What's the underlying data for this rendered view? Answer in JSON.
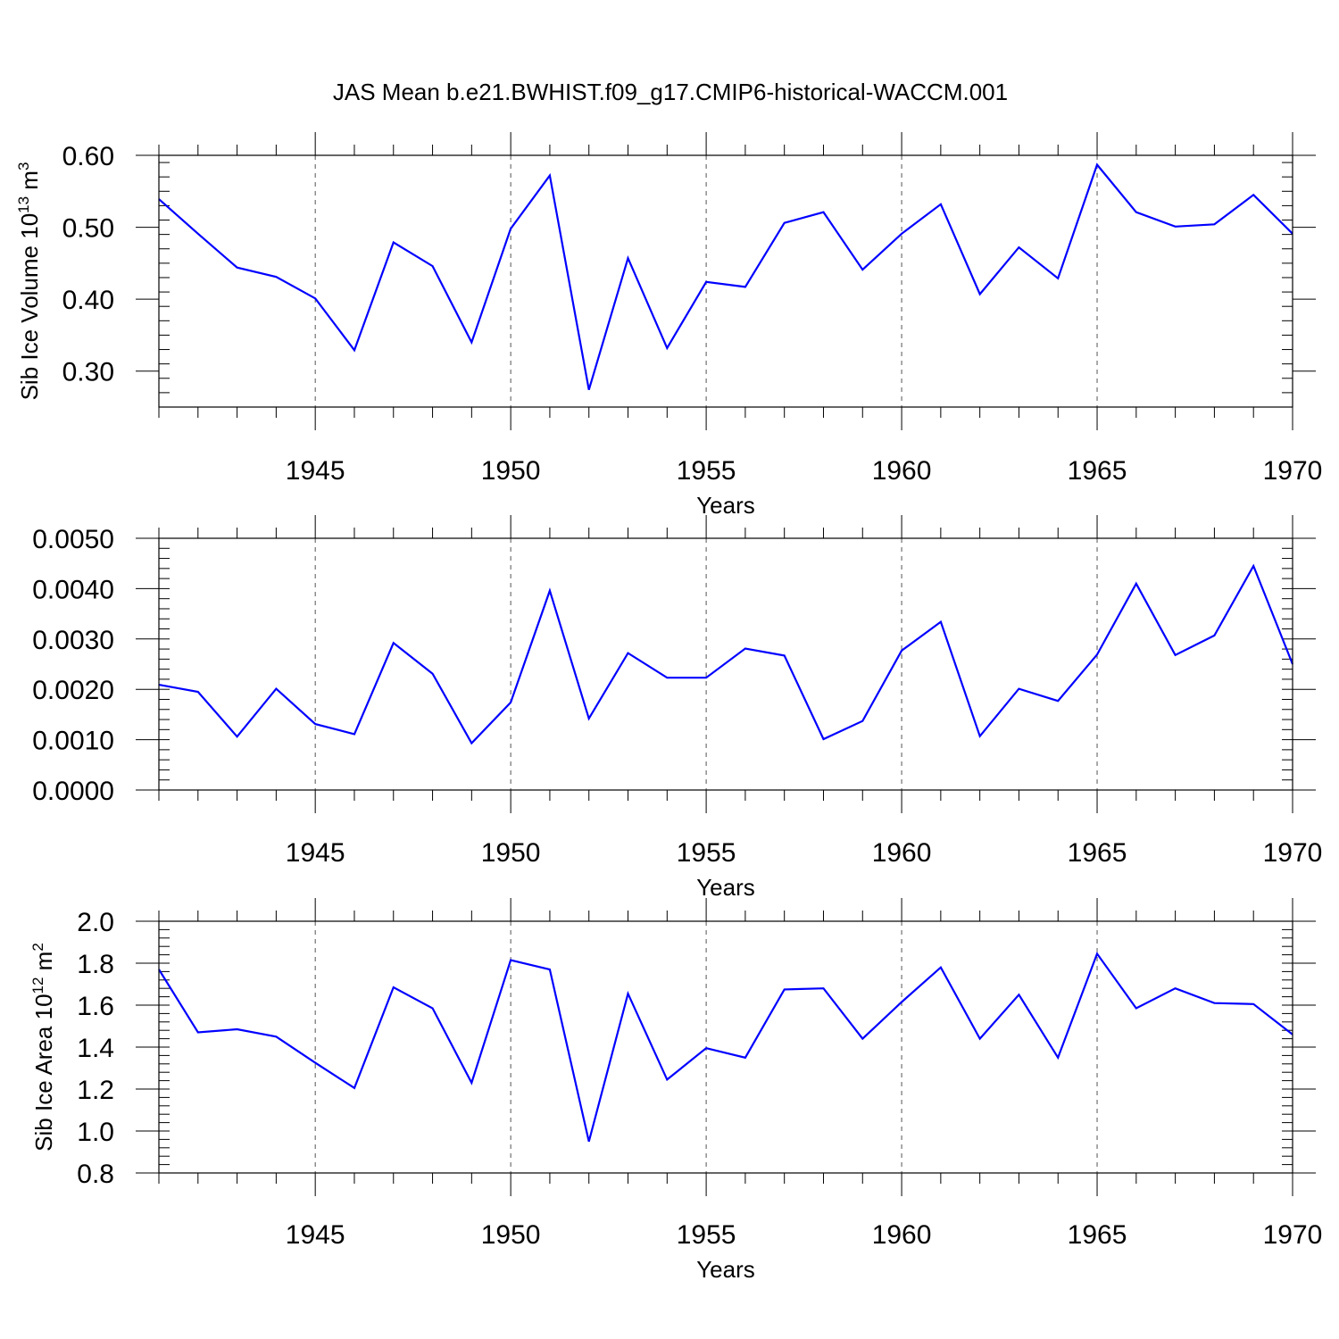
{
  "title": "JAS Mean b.e21.BWHIST.f09_g17.CMIP6-historical-WACCM.001",
  "chart_data": [
    {
      "type": "line",
      "xlabel": "Years",
      "ylabel": "Sib Ice Volume 10",
      "ylabel_sup1": "13",
      "ylabel_mid": " m",
      "ylabel_sup2": "3",
      "xlim": [
        1941,
        1970
      ],
      "ylim": [
        0.25,
        0.6
      ],
      "yticks": [
        "0.30",
        "0.40",
        "0.50",
        "0.60"
      ],
      "ytick_values": [
        0.3,
        0.4,
        0.5,
        0.6
      ],
      "xticks": [
        "1945",
        "1950",
        "1955",
        "1960",
        "1965",
        "1970"
      ],
      "xtick_values": [
        1945,
        1950,
        1955,
        1960,
        1965,
        1970
      ],
      "grid_x": [
        1945,
        1950,
        1955,
        1960,
        1965
      ],
      "x": [
        1941,
        1942,
        1943,
        1944,
        1945,
        1946,
        1947,
        1948,
        1949,
        1950,
        1951,
        1952,
        1953,
        1954,
        1955,
        1956,
        1957,
        1958,
        1959,
        1960,
        1961,
        1962,
        1963,
        1964,
        1965,
        1966,
        1967,
        1968,
        1969,
        1970
      ],
      "values": [
        0.539,
        0.491,
        0.444,
        0.431,
        0.401,
        0.329,
        0.479,
        0.446,
        0.34,
        0.498,
        0.572,
        0.274,
        0.457,
        0.332,
        0.424,
        0.417,
        0.506,
        0.521,
        0.441,
        0.491,
        0.532,
        0.407,
        0.472,
        0.429,
        0.587,
        0.521,
        0.501,
        0.504,
        0.545,
        0.491
      ]
    },
    {
      "type": "line",
      "xlabel": "Years",
      "ylabel": "",
      "ylabel_sup1": "",
      "ylabel_mid": "",
      "ylabel_sup2": "",
      "xlim": [
        1941,
        1970
      ],
      "ylim": [
        0,
        0.005
      ],
      "yticks": [
        "0.0000",
        "0.0010",
        "0.0020",
        "0.0030",
        "0.0040",
        "0.0050"
      ],
      "ytick_values": [
        0,
        0.001,
        0.002,
        0.003,
        0.004,
        0.005
      ],
      "xticks": [
        "1945",
        "1950",
        "1955",
        "1960",
        "1965",
        "1970"
      ],
      "xtick_values": [
        1945,
        1950,
        1955,
        1960,
        1965,
        1970
      ],
      "grid_x": [
        1945,
        1950,
        1955,
        1960,
        1965
      ],
      "x": [
        1941,
        1942,
        1943,
        1944,
        1945,
        1946,
        1947,
        1948,
        1949,
        1950,
        1951,
        1952,
        1953,
        1954,
        1955,
        1956,
        1957,
        1958,
        1959,
        1960,
        1961,
        1962,
        1963,
        1964,
        1965,
        1966,
        1967,
        1968,
        1969,
        1970
      ],
      "values": [
        0.00209,
        0.00195,
        0.00106,
        0.00201,
        0.00131,
        0.00111,
        0.00292,
        0.00231,
        0.00093,
        0.00174,
        0.00396,
        0.00142,
        0.00272,
        0.00223,
        0.00223,
        0.00281,
        0.00267,
        0.00101,
        0.00137,
        0.00277,
        0.00334,
        0.00107,
        0.00201,
        0.00177,
        0.00269,
        0.0041,
        0.00268,
        0.00307,
        0.00445,
        0.0025
      ]
    },
    {
      "type": "line",
      "xlabel": "Years",
      "ylabel": "Sib Ice Area 10",
      "ylabel_sup1": "12",
      "ylabel_mid": " m",
      "ylabel_sup2": "2",
      "xlim": [
        1941,
        1970
      ],
      "ylim": [
        0.8,
        2.0
      ],
      "yticks": [
        "0.8",
        "1.0",
        "1.2",
        "1.4",
        "1.6",
        "1.8",
        "2.0"
      ],
      "ytick_values": [
        0.8,
        1.0,
        1.2,
        1.4,
        1.6,
        1.8,
        2.0
      ],
      "xticks": [
        "1945",
        "1950",
        "1955",
        "1960",
        "1965",
        "1970"
      ],
      "xtick_values": [
        1945,
        1950,
        1955,
        1960,
        1965,
        1970
      ],
      "grid_x": [
        1945,
        1950,
        1955,
        1960,
        1965
      ],
      "x": [
        1941,
        1942,
        1943,
        1944,
        1945,
        1946,
        1947,
        1948,
        1949,
        1950,
        1951,
        1952,
        1953,
        1954,
        1955,
        1956,
        1957,
        1958,
        1959,
        1960,
        1961,
        1962,
        1963,
        1964,
        1965,
        1966,
        1967,
        1968,
        1969,
        1970
      ],
      "values": [
        1.77,
        1.47,
        1.485,
        1.45,
        1.325,
        1.205,
        1.685,
        1.585,
        1.23,
        1.815,
        1.77,
        0.95,
        1.655,
        1.245,
        1.395,
        1.35,
        1.675,
        1.68,
        1.44,
        1.615,
        1.78,
        1.44,
        1.65,
        1.35,
        1.845,
        1.585,
        1.68,
        1.61,
        1.605,
        1.46
      ]
    }
  ]
}
